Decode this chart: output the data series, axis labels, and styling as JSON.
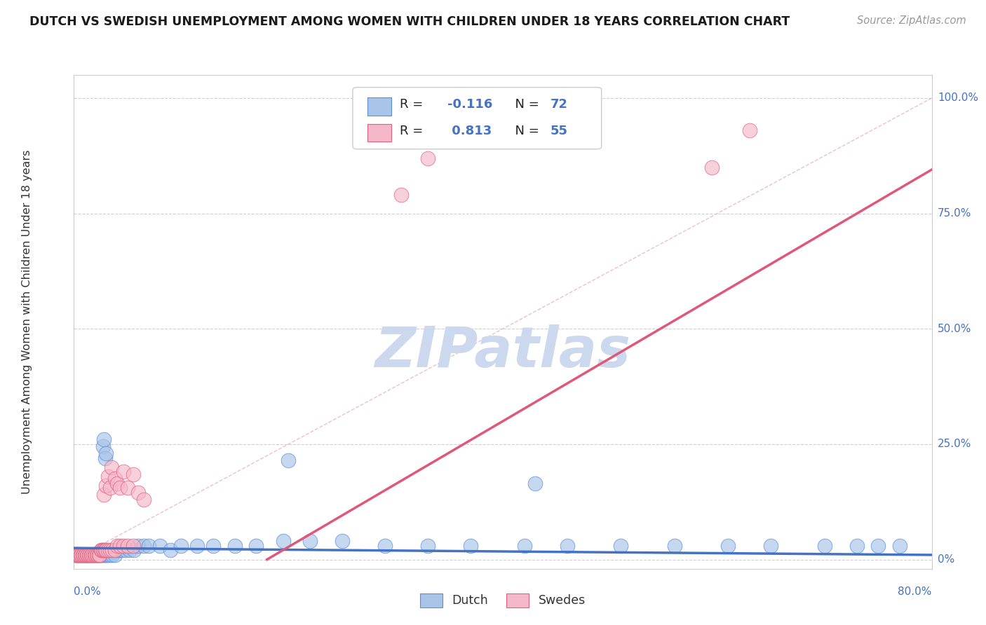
{
  "title": "DUTCH VS SWEDISH UNEMPLOYMENT AMONG WOMEN WITH CHILDREN UNDER 18 YEARS CORRELATION CHART",
  "source": "Source: ZipAtlas.com",
  "ylabel": "Unemployment Among Women with Children Under 18 years",
  "ytick_labels": [
    "0%",
    "25.0%",
    "50.0%",
    "75.0%",
    "100.0%"
  ],
  "ytick_values": [
    0.0,
    0.25,
    0.5,
    0.75,
    1.0
  ],
  "xmin": 0.0,
  "xmax": 0.8,
  "ymin": -0.02,
  "ymax": 1.05,
  "dutch_color": "#a8c4e8",
  "dutch_edge_color": "#5b8dd9",
  "swedes_color": "#f5b8c8",
  "swedes_edge_color": "#e06080",
  "dutch_line_color": "#4472c4",
  "swedes_line_color": "#e05878",
  "ref_line_color": "#e8b0c0",
  "watermark_color": "#ccd8ee",
  "background_color": "#ffffff",
  "dutch_scatter_x": [
    0.001,
    0.002,
    0.003,
    0.004,
    0.005,
    0.006,
    0.007,
    0.008,
    0.009,
    0.01,
    0.011,
    0.012,
    0.013,
    0.014,
    0.015,
    0.016,
    0.017,
    0.018,
    0.019,
    0.02,
    0.021,
    0.022,
    0.023,
    0.024,
    0.025,
    0.026,
    0.027,
    0.028,
    0.029,
    0.03,
    0.032,
    0.034,
    0.036,
    0.038,
    0.04,
    0.042,
    0.045,
    0.048,
    0.052,
    0.056,
    0.06,
    0.065,
    0.07,
    0.08,
    0.09,
    0.1,
    0.115,
    0.13,
    0.15,
    0.17,
    0.195,
    0.22,
    0.25,
    0.29,
    0.33,
    0.37,
    0.42,
    0.46,
    0.51,
    0.56,
    0.61,
    0.65,
    0.7,
    0.73,
    0.75,
    0.77,
    0.027,
    0.028,
    0.029,
    0.03,
    0.43,
    0.2
  ],
  "dutch_scatter_y": [
    0.01,
    0.01,
    0.01,
    0.01,
    0.01,
    0.01,
    0.01,
    0.01,
    0.01,
    0.01,
    0.01,
    0.01,
    0.01,
    0.01,
    0.01,
    0.01,
    0.01,
    0.01,
    0.01,
    0.01,
    0.01,
    0.01,
    0.01,
    0.01,
    0.01,
    0.01,
    0.01,
    0.01,
    0.01,
    0.01,
    0.01,
    0.01,
    0.01,
    0.01,
    0.02,
    0.02,
    0.02,
    0.02,
    0.02,
    0.02,
    0.03,
    0.03,
    0.03,
    0.03,
    0.02,
    0.03,
    0.03,
    0.03,
    0.03,
    0.03,
    0.04,
    0.04,
    0.04,
    0.03,
    0.03,
    0.03,
    0.03,
    0.03,
    0.03,
    0.03,
    0.03,
    0.03,
    0.03,
    0.03,
    0.03,
    0.03,
    0.245,
    0.26,
    0.22,
    0.23,
    0.165,
    0.215
  ],
  "swedes_scatter_x": [
    0.001,
    0.002,
    0.003,
    0.004,
    0.005,
    0.006,
    0.007,
    0.008,
    0.009,
    0.01,
    0.011,
    0.012,
    0.013,
    0.014,
    0.015,
    0.016,
    0.017,
    0.018,
    0.019,
    0.02,
    0.021,
    0.022,
    0.023,
    0.024,
    0.025,
    0.026,
    0.027,
    0.028,
    0.029,
    0.03,
    0.032,
    0.034,
    0.036,
    0.038,
    0.04,
    0.043,
    0.046,
    0.05,
    0.055,
    0.028,
    0.03,
    0.032,
    0.034,
    0.035,
    0.038,
    0.04,
    0.043,
    0.046,
    0.05,
    0.055,
    0.06,
    0.065,
    0.305,
    0.33,
    0.595,
    0.63
  ],
  "swedes_scatter_y": [
    0.01,
    0.01,
    0.01,
    0.01,
    0.01,
    0.01,
    0.01,
    0.01,
    0.01,
    0.01,
    0.01,
    0.01,
    0.01,
    0.01,
    0.01,
    0.01,
    0.01,
    0.01,
    0.01,
    0.01,
    0.01,
    0.01,
    0.01,
    0.01,
    0.02,
    0.02,
    0.02,
    0.02,
    0.02,
    0.02,
    0.02,
    0.02,
    0.02,
    0.02,
    0.03,
    0.03,
    0.03,
    0.03,
    0.03,
    0.14,
    0.16,
    0.18,
    0.155,
    0.2,
    0.175,
    0.165,
    0.155,
    0.19,
    0.155,
    0.185,
    0.145,
    0.13,
    0.79,
    0.87,
    0.85,
    0.93
  ],
  "dutch_trend_x": [
    0.0,
    0.8
  ],
  "dutch_trend_y": [
    0.025,
    0.01
  ],
  "swedes_trend_x": [
    0.18,
    0.8
  ],
  "swedes_trend_y": [
    0.0,
    0.845
  ],
  "ref_line_x": [
    0.0,
    0.8
  ],
  "ref_line_y": [
    0.0,
    1.0
  ]
}
